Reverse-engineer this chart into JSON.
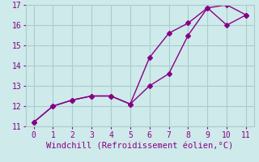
{
  "line1_x": [
    0,
    1,
    2,
    3,
    4,
    5,
    6,
    7,
    8,
    9,
    10,
    11
  ],
  "line1_y": [
    11.2,
    12.0,
    12.3,
    12.5,
    12.5,
    12.1,
    13.0,
    13.6,
    15.5,
    16.85,
    16.0,
    16.5
  ],
  "line2_x": [
    0,
    1,
    2,
    3,
    4,
    5,
    6,
    7,
    8,
    9,
    10,
    11
  ],
  "line2_y": [
    11.2,
    12.0,
    12.3,
    12.5,
    12.5,
    12.1,
    14.4,
    15.6,
    16.1,
    16.85,
    17.0,
    16.5
  ],
  "line_color": "#880088",
  "bg_color": "#ceeaea",
  "grid_color": "#aacccc",
  "xlabel": "Windchill (Refroidissement éolien,°C)",
  "xlim": [
    -0.4,
    11.4
  ],
  "ylim": [
    11,
    17
  ],
  "yticks": [
    11,
    12,
    13,
    14,
    15,
    16,
    17
  ],
  "xticks": [
    0,
    1,
    2,
    3,
    4,
    5,
    6,
    7,
    8,
    9,
    10,
    11
  ],
  "xlabel_fontsize": 7.5,
  "tick_fontsize": 7,
  "marker": "D",
  "marker_size": 3,
  "line_width": 1.0
}
